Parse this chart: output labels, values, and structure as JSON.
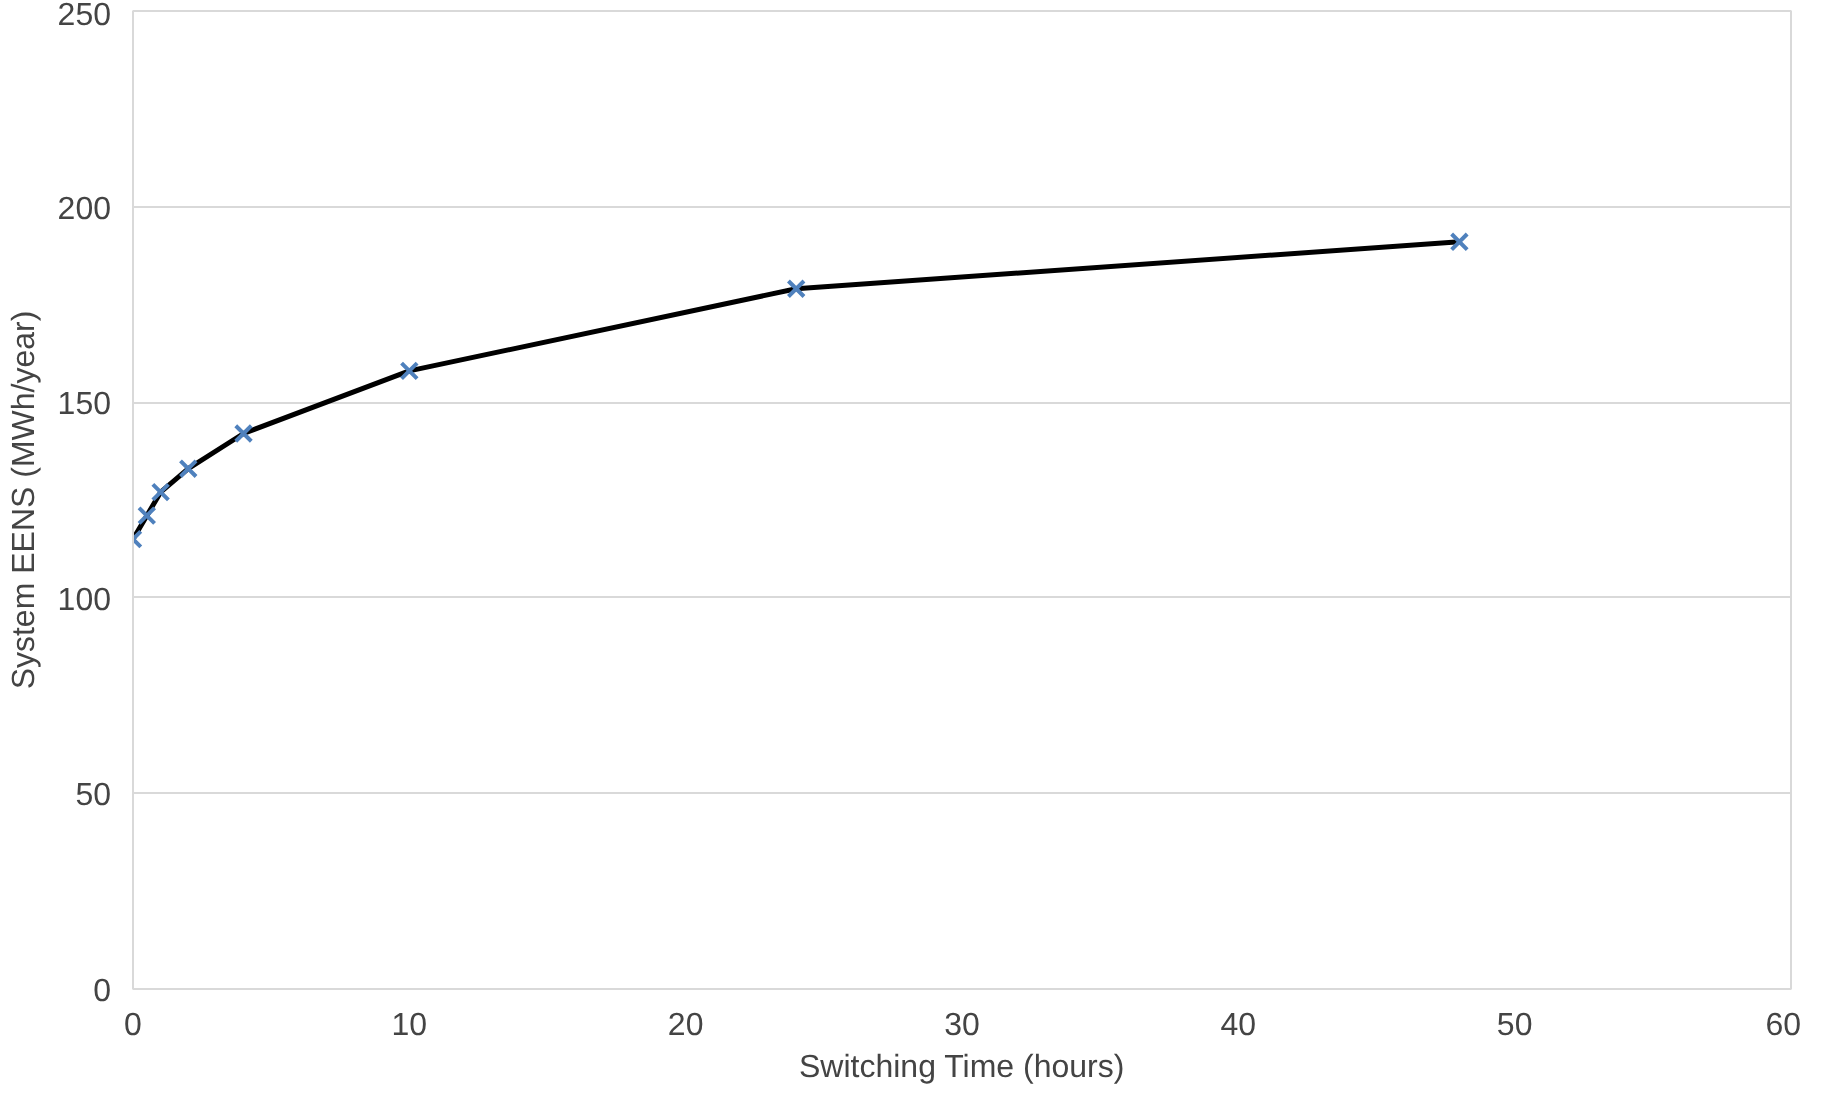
{
  "chart_data": {
    "type": "line",
    "xlabel": "Switching Time (hours)",
    "ylabel": "System EENS (MWh/year)",
    "x": [
      0,
      0.5,
      1,
      2,
      4,
      10,
      24,
      48
    ],
    "series": [
      {
        "color": "#4f81bd",
        "values": [
          115,
          121,
          127,
          133,
          142,
          158,
          179,
          191
        ]
      }
    ],
    "xlim": [
      0,
      60
    ],
    "xticks": [
      0,
      10,
      20,
      30,
      40,
      50,
      60
    ],
    "ylim": [
      0,
      250
    ],
    "yticks": [
      0,
      50,
      100,
      150,
      200,
      250
    ],
    "grid": "y",
    "marker": "cross",
    "line_style": "solid"
  }
}
